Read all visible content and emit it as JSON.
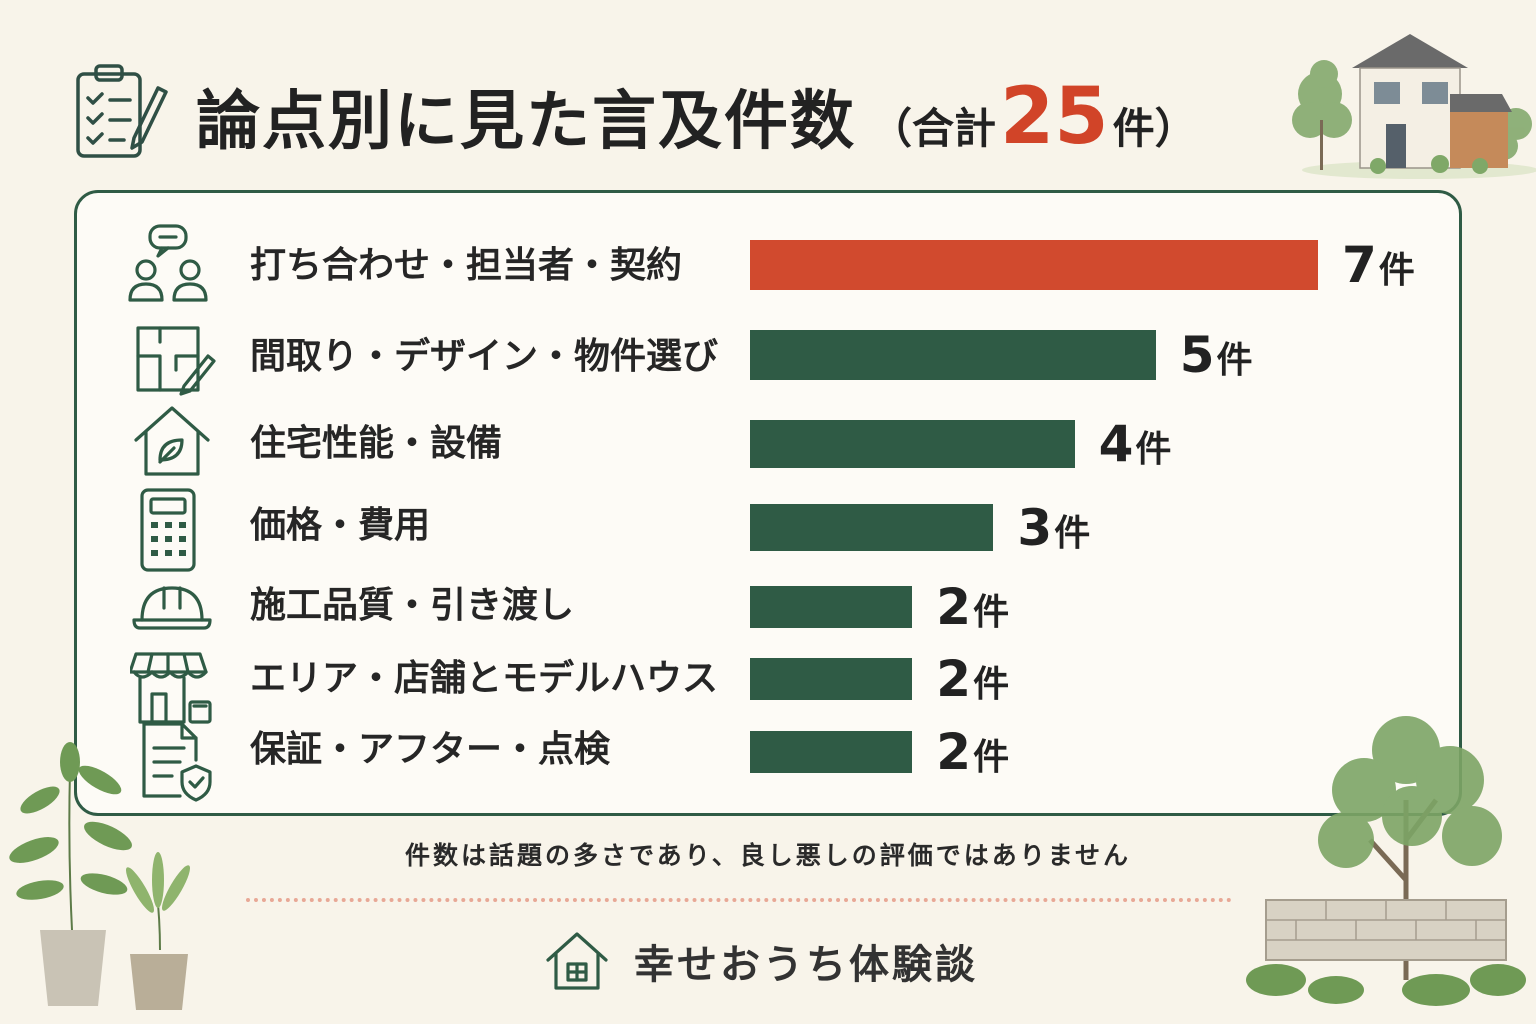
{
  "header": {
    "title": "論点別に見た言及件数",
    "total_prefix": "（合計",
    "total_value": "25",
    "total_suffix": "件）"
  },
  "colors": {
    "highlight": "#d14a2e",
    "bar": "#2f5b45",
    "frame": "#2f5b45",
    "background": "#f8f4ea"
  },
  "chart_data": {
    "type": "bar",
    "orientation": "horizontal",
    "categories": [
      "打ち合わせ・担当者・契約",
      "間取り・デザイン・物件選び",
      "住宅性能・設備",
      "価格・費用",
      "施工品質・引き渡し",
      "エリア・店舗とモデルハウス",
      "保証・アフター・点検"
    ],
    "values": [
      7,
      5,
      4,
      3,
      2,
      2,
      2
    ],
    "value_unit": "件",
    "highlight_index": 0,
    "category_icons": [
      "meeting-icon",
      "floorplan-icon",
      "house-leaf-icon",
      "calculator-icon",
      "helmet-icon",
      "shop-icon",
      "document-shield-icon"
    ],
    "title": "論点別に見た言及件数",
    "xlim": [
      0,
      7
    ],
    "grid": false,
    "legend": "none"
  },
  "footer": {
    "note": "件数は話題の多さであり、良し悪しの評価ではありません",
    "brand": "幸せおうち体験談"
  }
}
